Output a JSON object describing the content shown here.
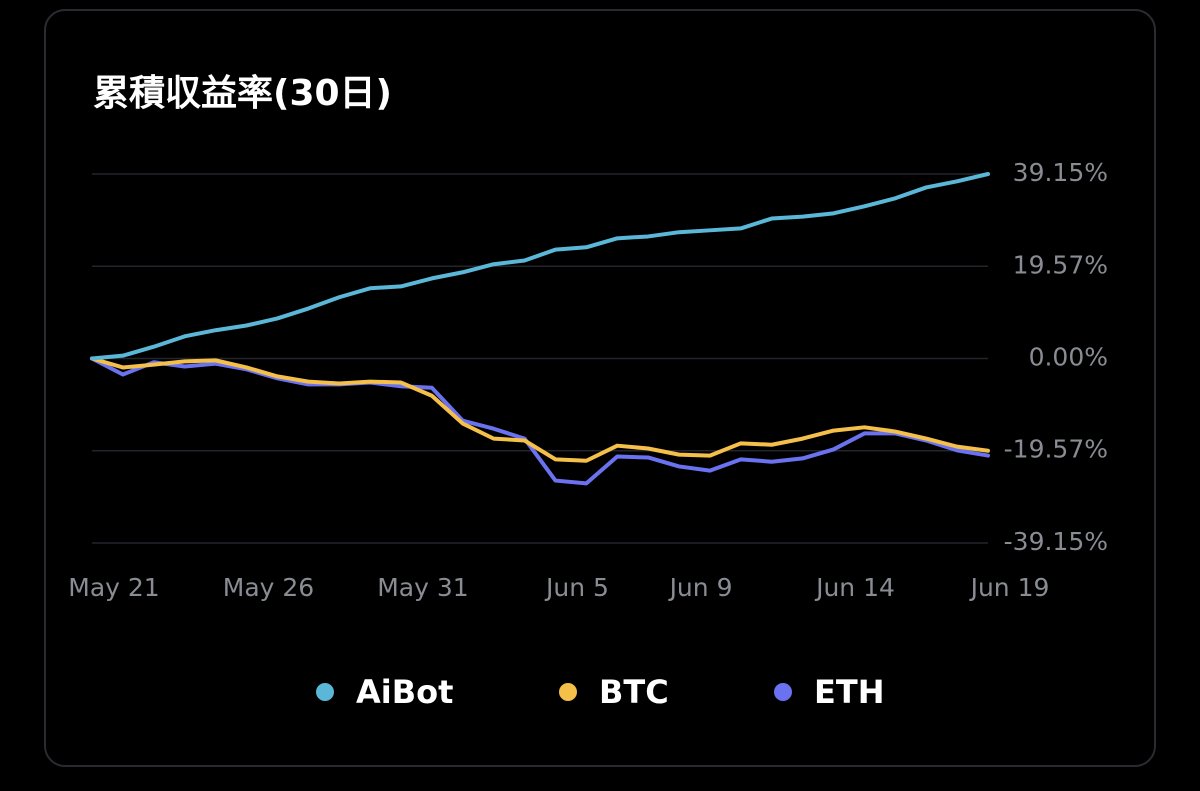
{
  "chart_data": {
    "type": "line",
    "title": "累積収益率(30日)",
    "categories": [
      "May 21",
      null,
      null,
      null,
      null,
      "May 26",
      null,
      null,
      null,
      null,
      "May 31",
      null,
      null,
      null,
      null,
      "Jun 5",
      null,
      null,
      null,
      "Jun 9",
      null,
      null,
      null,
      null,
      "Jun 14",
      null,
      null,
      null,
      null,
      "Jun 19"
    ],
    "series": [
      {
        "name": "AiBot",
        "color": "#5ab7d8",
        "values": [
          0,
          0.6,
          2.5,
          4.7,
          6.0,
          7.0,
          8.5,
          10.6,
          13.0,
          14.9,
          15.3,
          17.0,
          18.3,
          20.0,
          20.8,
          23.1,
          23.6,
          25.5,
          25.9,
          26.8,
          27.2,
          27.6,
          29.7,
          30.1,
          30.8,
          32.3,
          34.0,
          36.3,
          37.6,
          39.15
        ]
      },
      {
        "name": "BTC",
        "color": "#f5c04a",
        "values": [
          0,
          -1.9,
          -1.3,
          -0.6,
          -0.4,
          -1.9,
          -3.8,
          -4.9,
          -5.3,
          -4.9,
          -5.1,
          -7.9,
          -13.8,
          -17.0,
          -17.4,
          -21.4,
          -21.7,
          -18.5,
          -19.1,
          -20.4,
          -20.6,
          -18.0,
          -18.3,
          -17.0,
          -15.3,
          -14.6,
          -15.5,
          -17.0,
          -18.7,
          -19.57
        ]
      },
      {
        "name": "ETH",
        "color": "#6b72f0",
        "values": [
          0,
          -3.4,
          -0.8,
          -1.7,
          -1.1,
          -2.3,
          -4.2,
          -5.5,
          -5.5,
          -5.1,
          -5.9,
          -6.2,
          -13.2,
          -14.9,
          -17.0,
          -25.9,
          -26.5,
          -20.8,
          -21.0,
          -22.9,
          -23.8,
          -21.4,
          -21.9,
          -21.2,
          -19.3,
          -15.9,
          -15.9,
          -17.4,
          -19.5,
          -20.6
        ]
      }
    ],
    "ylim": [
      -39.15,
      39.15
    ],
    "yticks": [
      {
        "value": 39.15,
        "label": "39.15%"
      },
      {
        "value": 19.57,
        "label": "19.57%"
      },
      {
        "value": 0,
        "label": "0.00%"
      },
      {
        "value": -19.57,
        "label": "-19.57%"
      },
      {
        "value": -39.15,
        "label": "-39.15%"
      }
    ],
    "grid": true
  }
}
